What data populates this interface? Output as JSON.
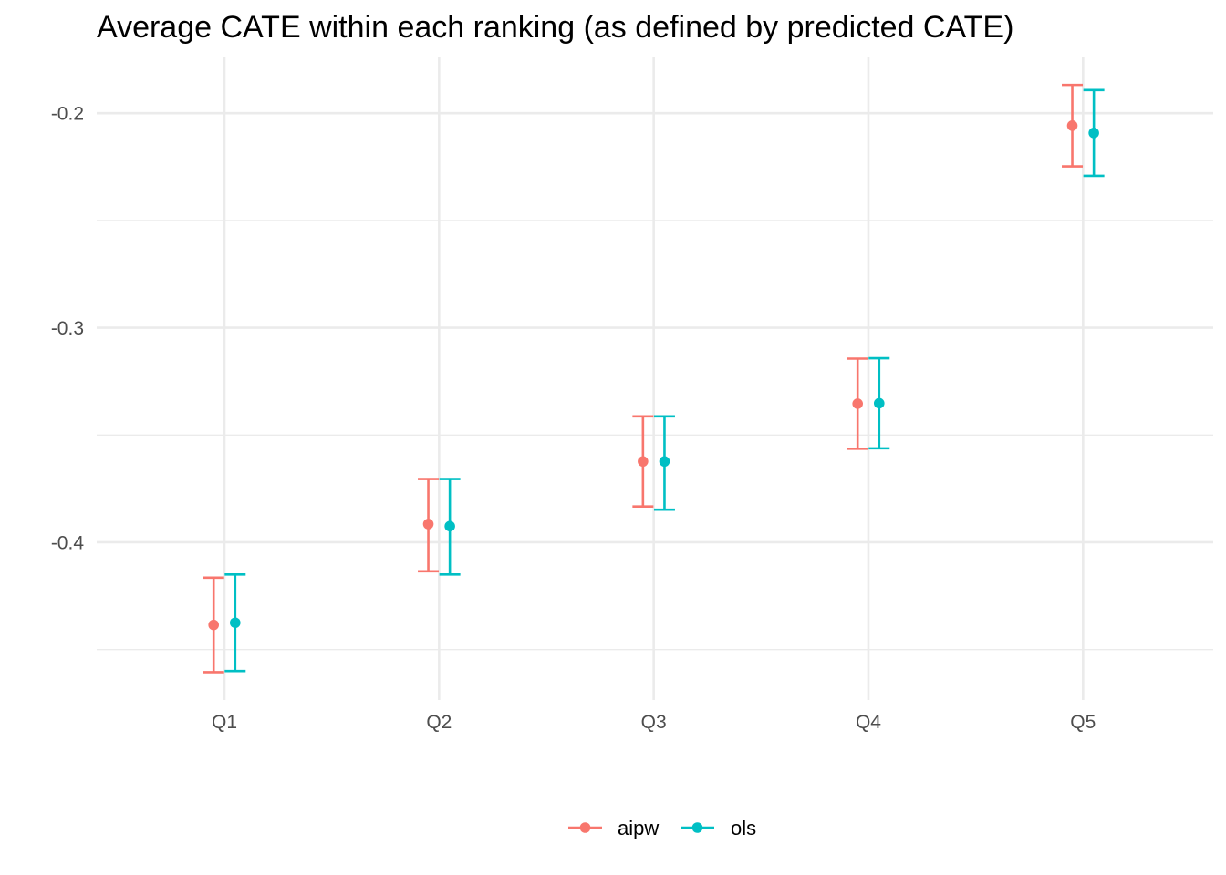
{
  "chart_data": {
    "type": "scatter",
    "title": "Average CATE within each ranking (as defined by predicted CATE)",
    "xlabel": "",
    "ylabel": "",
    "categories": [
      "Q1",
      "Q2",
      "Q3",
      "Q4",
      "Q5"
    ],
    "ylim": [
      -0.4735,
      -0.174
    ],
    "y_ticks": [
      -0.4,
      -0.3,
      -0.2
    ],
    "y_tick_labels": [
      "-0.4",
      "-0.3",
      "-0.2"
    ],
    "grid": true,
    "legend_position": "bottom",
    "series": [
      {
        "name": "aipw",
        "color": "#F8766D",
        "values": [
          -0.4385,
          -0.3915,
          -0.3623,
          -0.3354,
          -0.2058
        ],
        "lower": [
          -0.4605,
          -0.4135,
          -0.3833,
          -0.3564,
          -0.2248
        ],
        "upper": [
          -0.4165,
          -0.3705,
          -0.3413,
          -0.3144,
          -0.1868
        ]
      },
      {
        "name": "ols",
        "color": "#00BFC4",
        "values": [
          -0.4375,
          -0.3925,
          -0.3623,
          -0.3352,
          -0.2092
        ],
        "lower": [
          -0.46,
          -0.415,
          -0.3848,
          -0.3562,
          -0.2292
        ],
        "upper": [
          -0.415,
          -0.3705,
          -0.3413,
          -0.3142,
          -0.1892
        ]
      }
    ]
  }
}
